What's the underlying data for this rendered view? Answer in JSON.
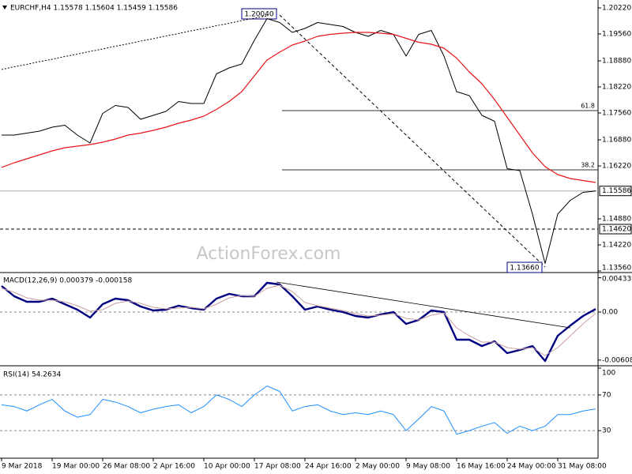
{
  "chart_data": [
    {
      "type": "line",
      "title": "EURCHF,H4  1.15578 1.15604 1.15459 1.15586",
      "watermark": "ActionForex.com",
      "ylim": [
        1.1354,
        1.2038
      ],
      "yticks": [
        {
          "value": 1.2022,
          "label": "1.20220"
        },
        {
          "value": 1.1956,
          "label": "1.19560"
        },
        {
          "value": 1.1888,
          "label": "1.18880"
        },
        {
          "value": 1.1822,
          "label": "1.18220"
        },
        {
          "value": 1.1756,
          "label": "1.17560"
        },
        {
          "value": 1.1688,
          "label": "1.16880"
        },
        {
          "value": 1.1622,
          "label": "1.16220"
        },
        {
          "value": 1.1488,
          "label": "1.14880"
        },
        {
          "value": 1.1422,
          "label": "1.14220"
        },
        {
          "value": 1.1356,
          "label": "1.13560"
        }
      ],
      "series": [
        {
          "color": "#000000",
          "width": 1,
          "values": [
            1.17,
            1.17,
            1.1705,
            1.171,
            1.172,
            1.1725,
            1.17,
            1.168,
            1.1755,
            1.1775,
            1.177,
            1.174,
            1.175,
            1.176,
            1.1785,
            1.178,
            1.178,
            1.1855,
            1.187,
            1.188,
            1.194,
            1.1995,
            1.1985,
            1.196,
            1.197,
            1.1985,
            1.198,
            1.1975,
            1.196,
            1.195,
            1.1965,
            1.1955,
            1.19,
            1.1955,
            1.1965,
            1.19,
            1.181,
            1.18,
            1.175,
            1.1735,
            1.1615,
            1.161,
            1.15,
            1.1375,
            1.15,
            1.1535,
            1.1555,
            1.15586
          ]
        },
        {
          "color": "#e8141a",
          "width": 1.2,
          "values": [
            1.1618,
            1.163,
            1.164,
            1.165,
            1.166,
            1.1668,
            1.1672,
            1.1676,
            1.1682,
            1.169,
            1.17,
            1.1705,
            1.1712,
            1.172,
            1.173,
            1.1738,
            1.1748,
            1.1765,
            1.1785,
            1.181,
            1.185,
            1.189,
            1.191,
            1.1928,
            1.1938,
            1.195,
            1.1955,
            1.1958,
            1.196,
            1.196,
            1.1958,
            1.1955,
            1.1945,
            1.1935,
            1.193,
            1.192,
            1.1895,
            1.186,
            1.183,
            1.179,
            1.1745,
            1.17,
            1.1655,
            1.162,
            1.16,
            1.159,
            1.1585,
            1.158
          ]
        },
        {
          "color": "#000000",
          "width": 1,
          "dash": "dotted",
          "values": [
            1.1866,
            1.1873,
            1.1879,
            1.1886,
            1.1892,
            1.1899,
            1.1905,
            1.1912,
            1.1918,
            1.1925,
            1.1931,
            1.1938,
            1.1944,
            1.1951,
            1.1957,
            1.1964,
            1.197,
            1.1977,
            1.1983,
            1.199,
            1.1996,
            1.2002,
            null,
            null,
            null,
            null,
            null,
            null,
            null,
            null,
            null,
            null,
            null,
            null,
            null,
            null,
            null,
            null,
            null,
            null,
            null,
            null,
            null,
            null,
            null,
            null,
            null,
            null
          ]
        }
      ],
      "hlines": [
        {
          "value": 1.15586,
          "label": "1.15586",
          "color": "#aaaaaa",
          "dash": "solid"
        },
        {
          "value": 1.1462,
          "label": "1.14620",
          "color": "#000000",
          "dash": "dashed"
        }
      ],
      "fib_levels": [
        {
          "value": 1.1762,
          "label": "61.8"
        },
        {
          "value": 1.1612,
          "label": "38.2"
        }
      ],
      "annotations": [
        {
          "x": 22,
          "value": 1.2004,
          "label": "1.20040"
        },
        {
          "x": 43,
          "value": 1.1366,
          "label": "1.13660"
        }
      ]
    },
    {
      "type": "line",
      "title": "MACD(12,26,9) 0.000379 -0.000158",
      "ylim": [
        -0.0067,
        0.0048
      ],
      "yticks": [
        0.004339,
        {
          "value": 0,
          "label": "0.00"
        },
        -0.006082
      ],
      "levels": [
        0
      ],
      "series": [
        {
          "color": "#000080",
          "width": 2.4,
          "values": [
            0.0033,
            0.002,
            0.0013,
            0.0013,
            0.0017,
            0.001,
            0.0003,
            -0.0007,
            0.001,
            0.0017,
            0.0015,
            0.0007,
            0.0002,
            0.0003,
            0.0008,
            0.0005,
            0.0003,
            0.0017,
            0.0023,
            0.002,
            0.002,
            0.0037,
            0.0035,
            0.002,
            0.0003,
            0.0007,
            0.0003,
            0.0,
            -0.0005,
            -0.0007,
            -0.0003,
            0.0,
            -0.0015,
            -0.001,
            0.0002,
            0.0,
            -0.0035,
            -0.0035,
            -0.0043,
            -0.0037,
            -0.0052,
            -0.0048,
            -0.0043,
            -0.0062,
            -0.003,
            -0.0017,
            -0.0005,
            0.000379
          ]
        },
        {
          "color": "#c9a0a0",
          "width": 1,
          "values": [
            0.003,
            0.0025,
            0.0018,
            0.0015,
            0.0015,
            0.0013,
            0.0008,
            0.0001,
            0.0003,
            0.0011,
            0.0014,
            0.0011,
            0.0006,
            0.0004,
            0.0005,
            0.0006,
            0.0004,
            0.001,
            0.0018,
            0.0021,
            0.002,
            0.003,
            0.0034,
            0.0026,
            0.0012,
            0.0008,
            0.0005,
            0.0002,
            -0.0002,
            -0.0005,
            -0.0004,
            -0.0002,
            -0.0008,
            -0.001,
            -0.0004,
            -0.0001,
            -0.002,
            -0.003,
            -0.0038,
            -0.0038,
            -0.0045,
            -0.0047,
            -0.0045,
            -0.0055,
            -0.0045,
            -0.003,
            -0.0015,
            -0.000158
          ]
        }
      ]
    },
    {
      "type": "line",
      "title": "RSI(14) 54.2634",
      "ylim": [
        0,
        100
      ],
      "yticks": [
        100,
        70,
        30
      ],
      "levels": [
        70,
        30
      ],
      "categories": [
        "9 Mar 2018",
        null,
        null,
        null,
        "19 Mar 00:00",
        null,
        null,
        null,
        "26 Mar 08:00",
        null,
        null,
        null,
        "2 Apr 16:00",
        null,
        null,
        null,
        "10 Apr 00:00",
        null,
        null,
        null,
        "17 Apr 08:00",
        null,
        null,
        null,
        "24 Apr 16:00",
        null,
        null,
        null,
        "2 May 00:00",
        null,
        null,
        null,
        "9 May 08:00",
        null,
        null,
        null,
        "16 May 16:00",
        null,
        null,
        null,
        "24 May 00:00",
        null,
        null,
        null,
        "31 May 08:00",
        null,
        null,
        null
      ],
      "series": [
        {
          "color": "#1e90ff",
          "width": 1,
          "values": [
            59,
            57,
            52,
            59,
            65,
            52,
            45,
            48,
            65,
            62,
            57,
            50,
            54,
            57,
            59,
            50,
            57,
            70,
            65,
            57,
            70,
            80,
            74,
            52,
            57,
            59,
            52,
            48,
            50,
            48,
            52,
            48,
            30,
            43,
            57,
            52,
            26,
            30,
            35,
            39,
            27,
            35,
            30,
            35,
            48,
            48,
            52,
            54.2634
          ]
        }
      ]
    }
  ]
}
